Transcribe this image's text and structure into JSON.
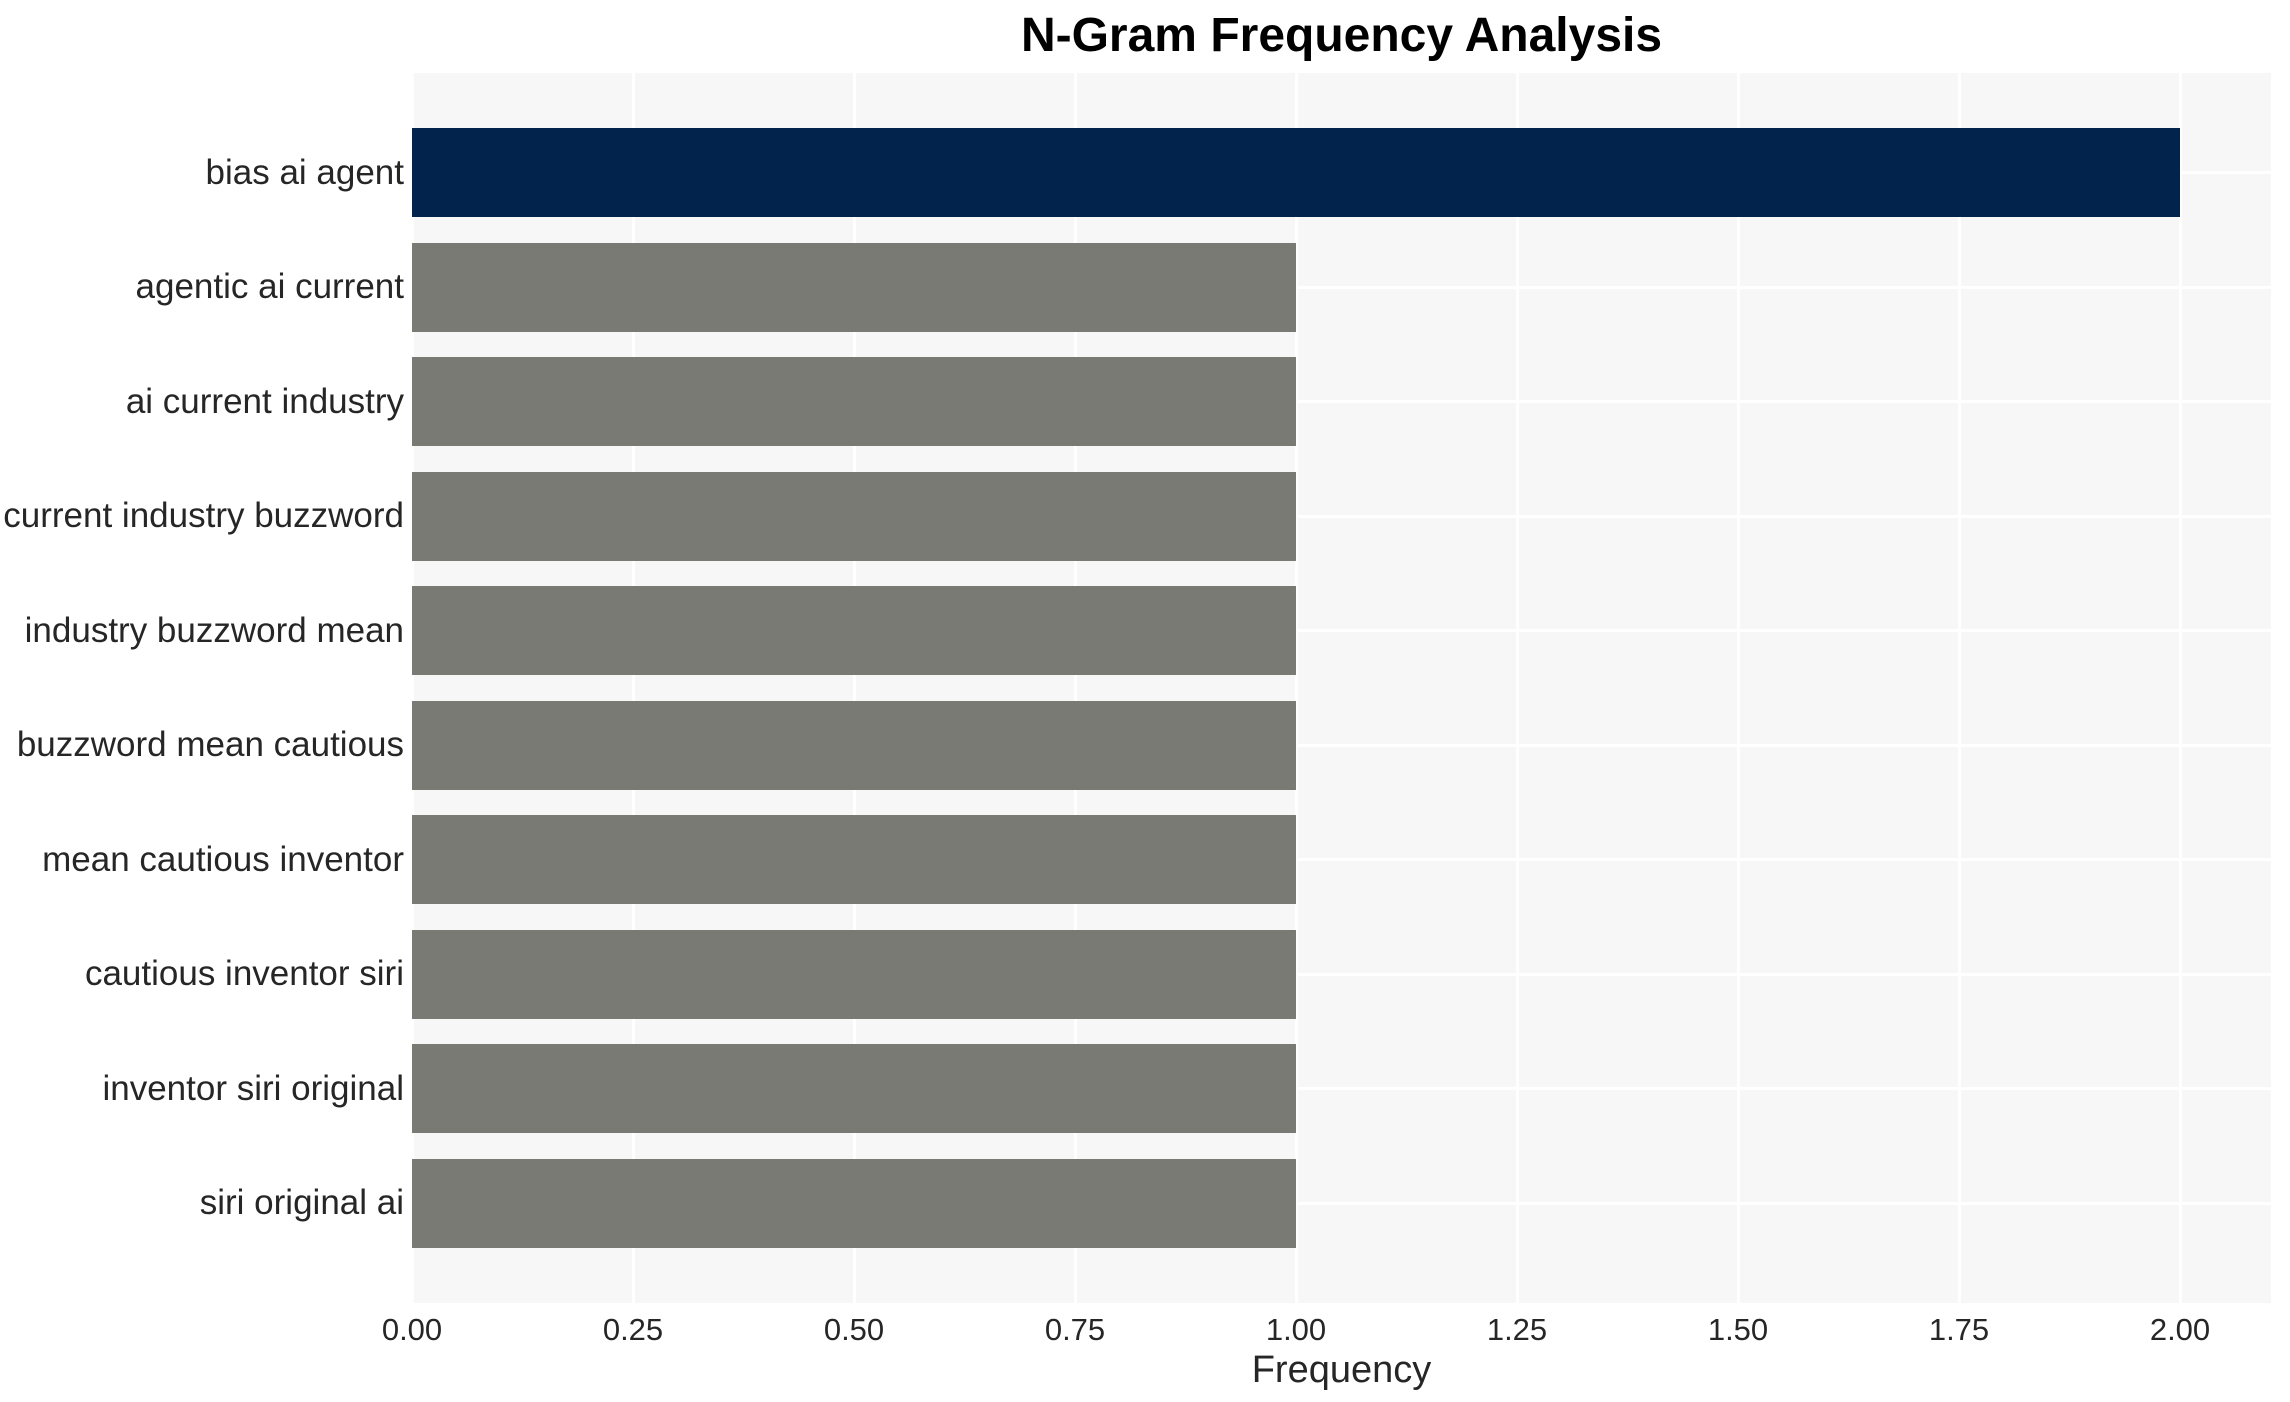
{
  "chart_data": {
    "type": "bar",
    "orientation": "horizontal",
    "title": "N-Gram Frequency Analysis",
    "xlabel": "Frequency",
    "ylabel": "",
    "categories": [
      "bias ai agent",
      "agentic ai current",
      "ai current industry",
      "current industry buzzword",
      "industry buzzword mean",
      "buzzword mean cautious",
      "mean cautious inventor",
      "cautious inventor siri",
      "inventor siri original",
      "siri original ai"
    ],
    "values": [
      2,
      1,
      1,
      1,
      1,
      1,
      1,
      1,
      1,
      1
    ],
    "bar_colors": [
      "#02234C",
      "#7A7A75",
      "#7A7A75",
      "#7A7A75",
      "#7A7A75",
      "#7A7A75",
      "#7A7A75",
      "#7A7A75",
      "#7A7A75",
      "#7A7A75"
    ],
    "xlim": [
      0,
      2.1
    ],
    "xtick_values": [
      0,
      0.25,
      0.5,
      0.75,
      1,
      1.25,
      1.5,
      1.75,
      2
    ],
    "xtick_labels": [
      "0.00",
      "0.25",
      "0.50",
      "0.75",
      "1.00",
      "1.25",
      "1.50",
      "1.75",
      "2.00"
    ],
    "grid": "on",
    "legend": "none",
    "colors": {
      "highlight_bar": "#02234C",
      "default_bar": "#7A7A75",
      "plot_background": "#F7F7F7",
      "figure_background": "#FFFFFF",
      "gridline": "#FFFFFF",
      "text": "#262626",
      "title_text": "#000000"
    }
  }
}
